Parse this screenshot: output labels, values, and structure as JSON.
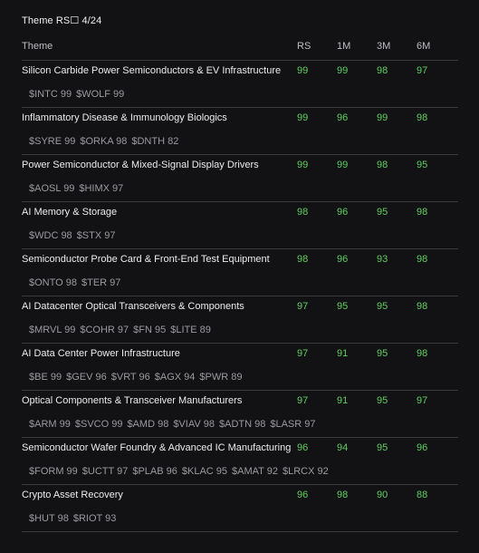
{
  "title": "Theme RS☐ 4/24",
  "columns": {
    "theme": "Theme",
    "rs": "RS",
    "m1": "1M",
    "m3": "3M",
    "m6": "6M"
  },
  "rows": [
    {
      "theme": "Silicon Carbide Power Semiconductors & EV Infrastructure",
      "rs": "99",
      "m1": "99",
      "m3": "98",
      "m6": "97",
      "tickers": [
        "$INTC 99",
        "$WOLF 99"
      ]
    },
    {
      "theme": "Inflammatory Disease & Immunology Biologics",
      "rs": "99",
      "m1": "96",
      "m3": "99",
      "m6": "98",
      "tickers": [
        "$SYRE 99",
        "$ORKA 98",
        "$DNTH 82"
      ]
    },
    {
      "theme": "Power Semiconductor & Mixed-Signal Display Drivers",
      "rs": "99",
      "m1": "99",
      "m3": "98",
      "m6": "95",
      "tickers": [
        "$AOSL 99",
        "$HIMX 97"
      ]
    },
    {
      "theme": "AI Memory & Storage",
      "rs": "98",
      "m1": "96",
      "m3": "95",
      "m6": "98",
      "tickers": [
        "$WDC 98",
        "$STX 97"
      ]
    },
    {
      "theme": "Semiconductor Probe Card & Front-End Test Equipment",
      "rs": "98",
      "m1": "96",
      "m3": "93",
      "m6": "98",
      "tickers": [
        "$ONTO 98",
        "$TER 97"
      ]
    },
    {
      "theme": "AI Datacenter Optical Transceivers & Components",
      "rs": "97",
      "m1": "95",
      "m3": "95",
      "m6": "98",
      "tickers": [
        "$MRVL 99",
        "$COHR 97",
        "$FN 95",
        "$LITE 89"
      ]
    },
    {
      "theme": "AI Data Center Power Infrastructure",
      "rs": "97",
      "m1": "91",
      "m3": "95",
      "m6": "98",
      "tickers": [
        "$BE 99",
        "$GEV 96",
        "$VRT 96",
        "$AGX 94",
        "$PWR 89"
      ]
    },
    {
      "theme": "Optical Components & Transceiver Manufacturers",
      "rs": "97",
      "m1": "91",
      "m3": "95",
      "m6": "97",
      "tickers": [
        "$ARM 99",
        "$SVCO 99",
        "$AMD 98",
        "$VIAV 98",
        "$ADTN 98",
        "$LASR 97"
      ]
    },
    {
      "theme": "Semiconductor Wafer Foundry & Advanced IC Manufacturing",
      "rs": "96",
      "m1": "94",
      "m3": "95",
      "m6": "96",
      "tickers": [
        "$FORM 99",
        "$UCTT 97",
        "$PLAB 96",
        "$KLAC 95",
        "$AMAT 92",
        "$LRCX 92"
      ]
    },
    {
      "theme": "Crypto Asset Recovery",
      "rs": "96",
      "m1": "98",
      "m3": "90",
      "m6": "88",
      "tickers": [
        "$HUT 98",
        "$RIOT 93"
      ]
    }
  ],
  "colors": {
    "positive": "#5fcf5f",
    "background": "#121214",
    "divider": "#3a3a3e"
  }
}
